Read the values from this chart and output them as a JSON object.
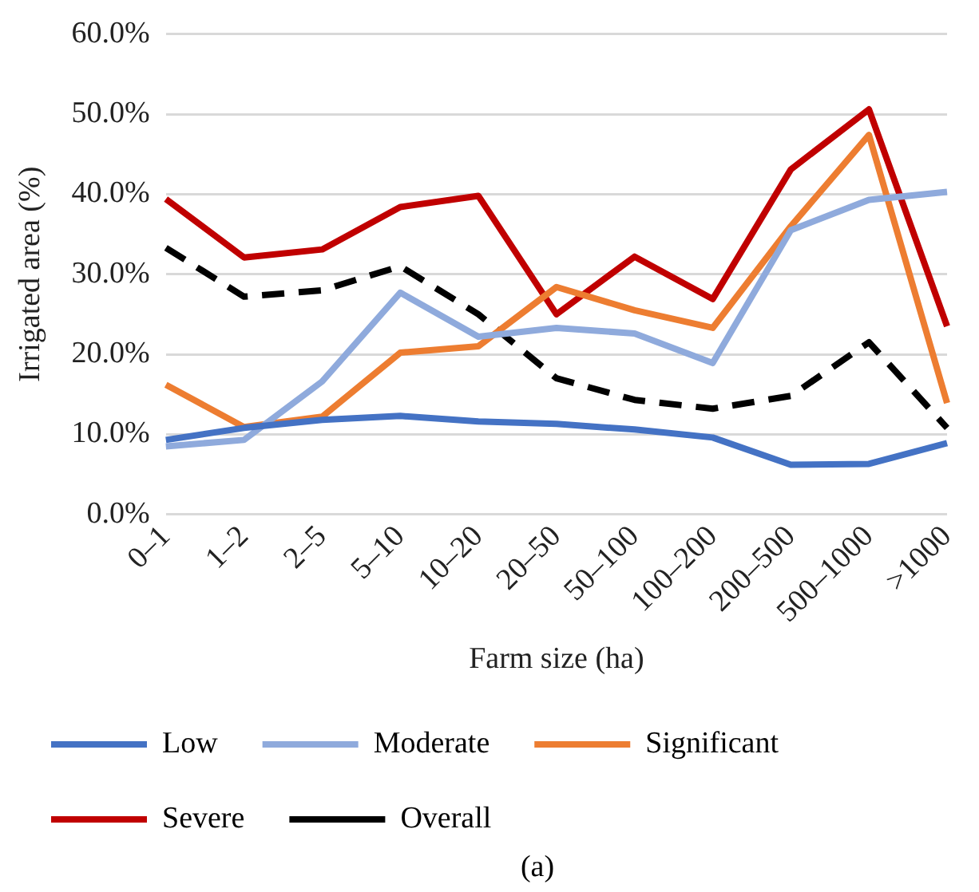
{
  "chart_data": {
    "type": "line",
    "xlabel": "Farm size (ha)",
    "ylabel": "Irrigated area (%)",
    "categories": [
      "0–1",
      "1–2",
      "2–5",
      "5–10",
      "10–20",
      "20–50",
      "50–100",
      "100–200",
      "200–500",
      "500–1000",
      ">1000"
    ],
    "series": [
      {
        "name": "Low",
        "color": "#4472c4",
        "values": [
          9.3,
          10.8,
          11.8,
          12.3,
          11.6,
          11.3,
          10.6,
          9.6,
          6.2,
          6.3,
          8.9
        ]
      },
      {
        "name": "Moderate",
        "color": "#8faadc",
        "values": [
          8.5,
          9.3,
          16.6,
          27.7,
          22.2,
          23.3,
          22.6,
          18.9,
          35.5,
          39.3,
          40.3
        ]
      },
      {
        "name": "Significant",
        "color": "#ed7d31",
        "values": [
          16.2,
          10.9,
          12.2,
          20.2,
          21.0,
          28.4,
          25.5,
          23.3,
          36.0,
          47.4,
          13.9
        ]
      },
      {
        "name": "Severe",
        "color": "#c00000",
        "values": [
          39.4,
          32.1,
          33.1,
          38.4,
          39.8,
          25.0,
          32.2,
          26.9,
          43.1,
          50.6,
          23.5
        ]
      },
      {
        "name": "Overall",
        "color": "#000000",
        "line_style": "dashed",
        "values": [
          33.3,
          27.2,
          28.0,
          31.0,
          25.0,
          17.0,
          14.3,
          13.2,
          14.8,
          21.5,
          10.8
        ]
      }
    ],
    "ylim": [
      0,
      60
    ],
    "yticks": [
      {
        "value": 0,
        "label": "0.0%"
      },
      {
        "value": 10,
        "label": "10.0%"
      },
      {
        "value": 20,
        "label": "20.0%"
      },
      {
        "value": 30,
        "label": "30.0%"
      },
      {
        "value": 40,
        "label": "40.0%"
      },
      {
        "value": 50,
        "label": "50.0%"
      },
      {
        "value": 60,
        "label": "60.0%"
      }
    ],
    "grid": "y",
    "legend": "bottom",
    "marker": "none",
    "line_style": "solid",
    "annotations": [
      "(a)"
    ]
  }
}
